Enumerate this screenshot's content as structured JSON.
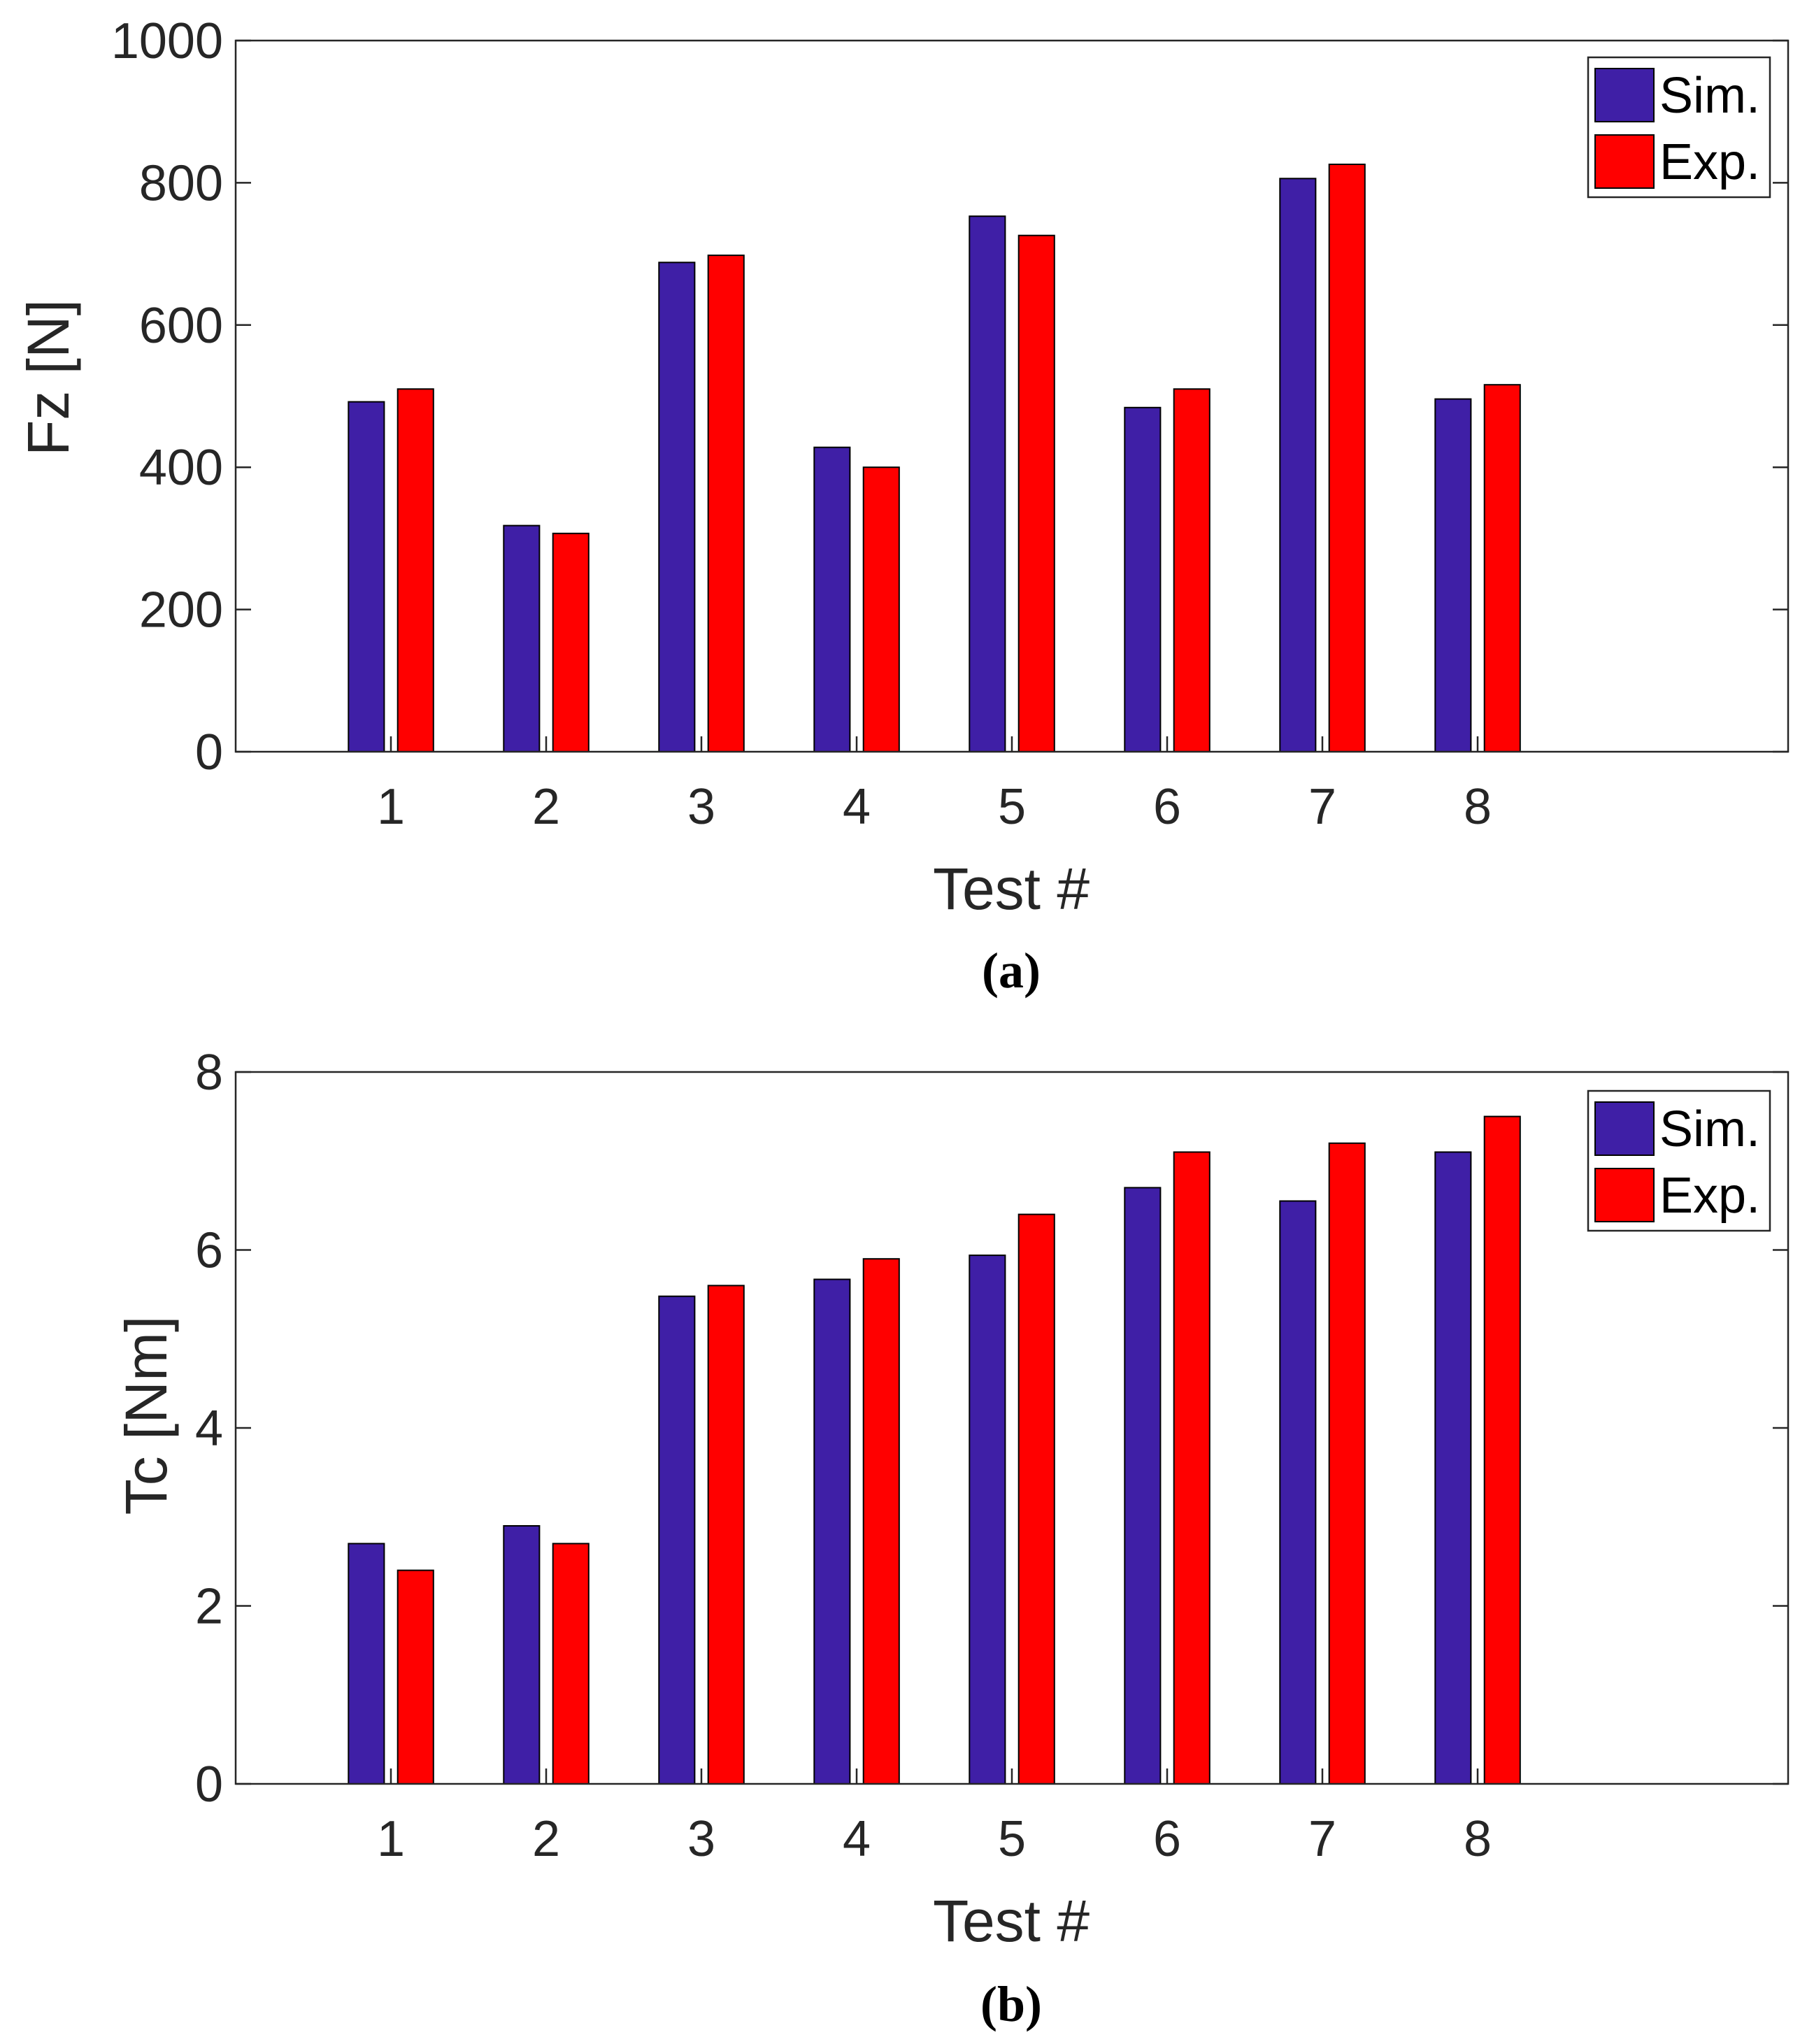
{
  "chart_data": [
    {
      "type": "bar",
      "caption": "(a)",
      "xlabel": "Test #",
      "ylabel": "Fz [N]",
      "categories": [
        "1",
        "2",
        "3",
        "4",
        "5",
        "6",
        "7",
        "8"
      ],
      "xlim": [
        0,
        10
      ],
      "ylim": [
        0,
        1000
      ],
      "yticks": [
        0,
        200,
        400,
        600,
        800,
        1000
      ],
      "series": [
        {
          "name": "Sim.",
          "color": "#3f1fa6",
          "values": [
            492,
            318,
            688,
            428,
            753,
            484,
            806,
            496
          ]
        },
        {
          "name": "Exp.",
          "color": "#ff0000",
          "values": [
            510,
            307,
            698,
            400,
            726,
            510,
            826,
            516
          ]
        }
      ],
      "legend_position": "top-right"
    },
    {
      "type": "bar",
      "caption": "(b)",
      "xlabel": "Test #",
      "ylabel": "Tc [Nm]",
      "categories": [
        "1",
        "2",
        "3",
        "4",
        "5",
        "6",
        "7",
        "8"
      ],
      "xlim": [
        0,
        10
      ],
      "ylim": [
        0,
        8
      ],
      "yticks": [
        0,
        2,
        4,
        6,
        8
      ],
      "series": [
        {
          "name": "Sim.",
          "color": "#3f1fa6",
          "values": [
            2.7,
            2.9,
            5.48,
            5.67,
            5.94,
            6.7,
            6.55,
            7.1
          ]
        },
        {
          "name": "Exp.",
          "color": "#ff0000",
          "values": [
            2.4,
            2.7,
            5.6,
            5.9,
            6.4,
            7.1,
            7.2,
            7.5
          ]
        }
      ],
      "legend_position": "top-right"
    }
  ]
}
